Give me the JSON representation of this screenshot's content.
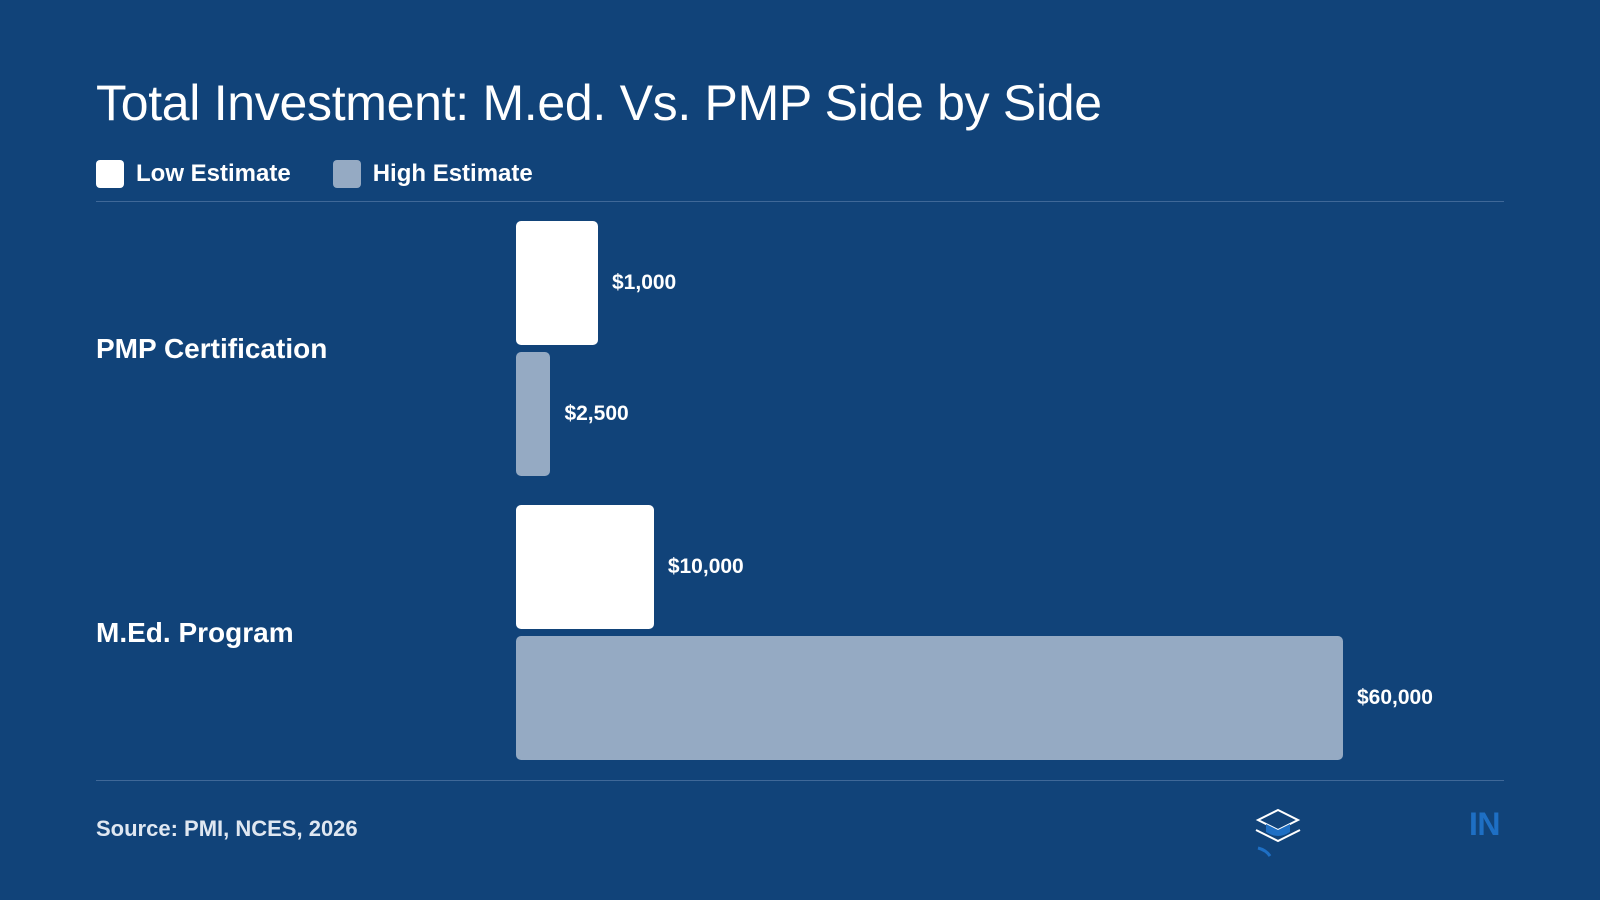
{
  "colors": {
    "background": "#114379",
    "low": "#ffffff",
    "high": "#95aac3",
    "text": "#ffffff",
    "accent": "#1e6fc4"
  },
  "chart_data": {
    "type": "bar",
    "orientation": "horizontal",
    "title": "Total Investment: M.ed. Vs. PMP Side by Side",
    "categories": [
      "PMP Certification",
      "M.Ed. Program"
    ],
    "series": [
      {
        "name": "Low Estimate",
        "values": [
          1000,
          10000
        ],
        "labels": [
          "$1,000",
          "$10,000"
        ]
      },
      {
        "name": "High Estimate",
        "values": [
          2500,
          60000
        ],
        "labels": [
          "$2,500",
          "$60,000"
        ]
      }
    ],
    "legend_position": "top-left",
    "grid": false
  },
  "legend": {
    "low_label": "Low Estimate",
    "high_label": "High Estimate"
  },
  "footer": {
    "source": "Source: PMI, NCES, 2026",
    "logo_icon": "graduation-cap-icon",
    "logo_text": "IN"
  }
}
